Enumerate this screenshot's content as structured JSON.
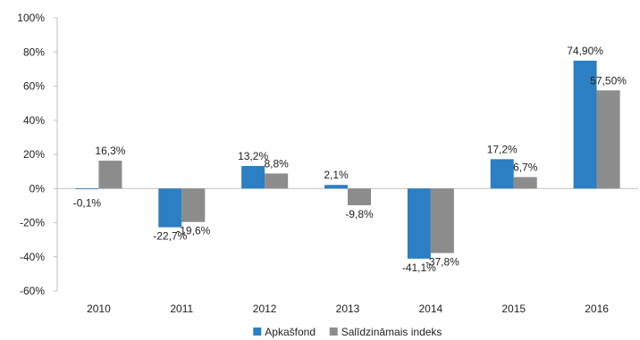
{
  "chart_data": {
    "type": "bar",
    "title": "",
    "xlabel": "",
    "ylabel": "",
    "categories": [
      "2010",
      "2011",
      "2012",
      "2013",
      "2014",
      "2015",
      "2016"
    ],
    "ylim": [
      -60,
      100
    ],
    "yticks": [
      -60,
      -40,
      -20,
      0,
      20,
      40,
      60,
      80,
      100
    ],
    "ytick_labels": [
      "-60%",
      "-40%",
      "-20%",
      "0%",
      "20%",
      "40%",
      "60%",
      "80%",
      "100%"
    ],
    "grid": false,
    "legend_position": "bottom",
    "series": [
      {
        "name": "Apkašfond",
        "color": "#2b7fc2",
        "values": [
          -0.1,
          -22.7,
          13.2,
          2.1,
          -41.1,
          17.2,
          74.9
        ],
        "labels": [
          "-0,1%",
          "-22,7%",
          "13,2%",
          "2,1%",
          "-41,1%",
          "17,2%",
          "74,90%"
        ]
      },
      {
        "name": "Salīdzināmais indeks",
        "color": "#8c8c8c",
        "values": [
          16.3,
          -19.6,
          8.8,
          -9.8,
          -37.8,
          6.7,
          57.5
        ],
        "labels": [
          "16,3%",
          "-19,6%",
          "8,8%",
          "-9,8%",
          "-37,8%",
          "6,7%",
          "57,50%"
        ]
      }
    ]
  }
}
